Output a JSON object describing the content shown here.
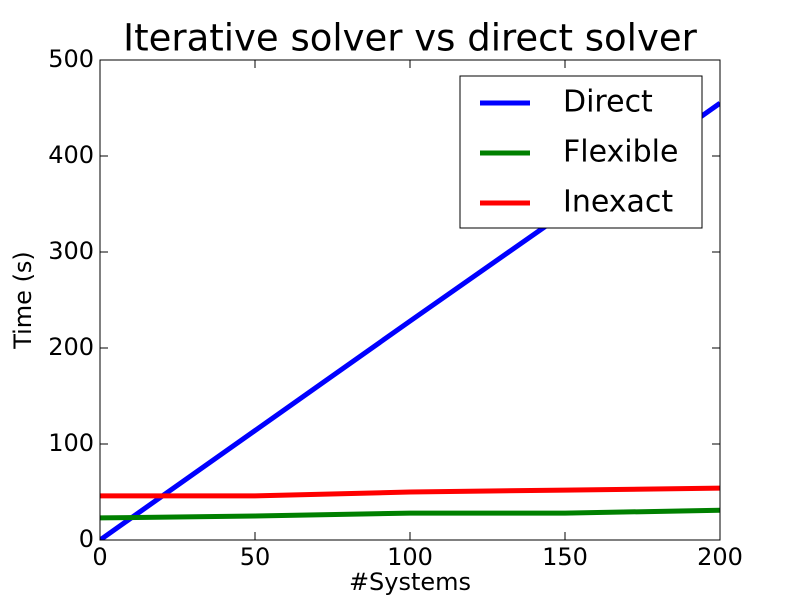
{
  "chart_data": {
    "type": "line",
    "title": "Iterative solver vs direct solver",
    "x_label": "#Systems",
    "y_label": "Time (s)",
    "x": [
      0,
      50,
      100,
      150,
      200
    ],
    "series": [
      {
        "name": "Direct",
        "color": "#0000ff",
        "values": [
          0,
          114,
          228,
          341,
          455
        ]
      },
      {
        "name": "Flexible",
        "color": "#008000",
        "values": [
          23,
          25,
          28,
          28,
          31
        ]
      },
      {
        "name": "Inexact",
        "color": "#ff0000",
        "values": [
          46,
          46,
          50,
          52,
          54
        ]
      }
    ],
    "xlim": [
      0,
      200
    ],
    "ylim": [
      0,
      500
    ],
    "xticks": [
      0,
      50,
      100,
      150,
      200
    ],
    "yticks": [
      0,
      100,
      200,
      300,
      400,
      500
    ],
    "grid": false,
    "legend": "upper right"
  }
}
